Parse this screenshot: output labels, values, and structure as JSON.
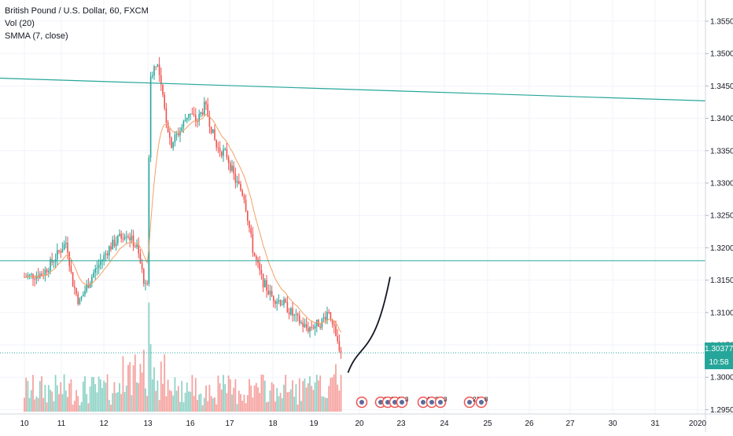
{
  "header": {
    "title": "British Pound / U.S. Dollar, 60, FXCM",
    "indicator_volume": "Vol (20)",
    "indicator_ma": "SMMA (7, close)"
  },
  "price_axis": {
    "labels": [
      "1.35500",
      "1.35000",
      "1.34500",
      "1.34000",
      "1.33500",
      "1.33000",
      "1.32500",
      "1.32000",
      "1.31500",
      "1.31000",
      "1.30500",
      "1.30000",
      "1.29500"
    ],
    "current_price": "1.30377",
    "countdown": "10:58"
  },
  "time_axis": {
    "labels": [
      "10",
      "11",
      "12",
      "13",
      "16",
      "17",
      "18",
      "19",
      "20",
      "23",
      "24",
      "25",
      "26",
      "27",
      "30",
      "31",
      "2020"
    ]
  },
  "event_markers": [
    {
      "icon": "flag-icon",
      "label": ""
    },
    {
      "icon": "flag-icon",
      "label": "8"
    },
    {
      "icon": "flag-icon",
      "label": "7"
    },
    {
      "icon": "flag-icon",
      "label": "2"
    },
    {
      "icon": "flag-icon",
      "label": "3"
    },
    {
      "icon": "flag-icon",
      "label": "4"
    },
    {
      "icon": "flag-icon",
      "label": "2"
    },
    {
      "icon": "flag-icon",
      "label": "3"
    },
    {
      "icon": "flag-icon",
      "label": "23"
    },
    {
      "icon": "flag-icon",
      "label": "8"
    }
  ],
  "colors": {
    "up": "#26a69a",
    "down": "#ef5350",
    "volume_up": "#8fd3c7",
    "volume_down": "#f5a3a0",
    "ma": "#f5a064",
    "trendline": "#26a69a",
    "current_price_line": "#26a69a",
    "projection": "#131722"
  },
  "chart_data": {
    "type": "candlestick",
    "title": "British Pound / U.S. Dollar, 60, FXCM",
    "symbol": "GBPUSD",
    "timeframe": "60",
    "ylim": [
      1.2935,
      1.3575
    ],
    "grid": true,
    "series": [
      {
        "name": "British Pound / U.S. Dollar",
        "kind": "ohlc",
        "anchors": [
          [
            "10 00:00",
            1.3155
          ],
          [
            "10 12:00",
            1.316
          ],
          [
            "10 20:00",
            1.3185
          ],
          [
            "11 03:00",
            1.321
          ],
          [
            "11 06:00",
            1.315
          ],
          [
            "11 10:00",
            1.3115
          ],
          [
            "11 18:00",
            1.316
          ],
          [
            "12 03:00",
            1.32
          ],
          [
            "12 12:00",
            1.3225
          ],
          [
            "12 18:00",
            1.32
          ],
          [
            "12 23:00",
            1.3135
          ],
          [
            "13 00:00",
            1.314
          ],
          [
            "13 01:00",
            1.346
          ],
          [
            "13 05:00",
            1.349
          ],
          [
            "13 09:00",
            1.342
          ],
          [
            "13 13:00",
            1.336
          ],
          [
            "13 19:00",
            1.3385
          ],
          [
            "13 23:00",
            1.341
          ],
          [
            "16 04:00",
            1.3395
          ],
          [
            "16 09:00",
            1.342
          ],
          [
            "16 16:00",
            1.3355
          ],
          [
            "16 22:00",
            1.3345
          ],
          [
            "17 03:00",
            1.3305
          ],
          [
            "17 08:00",
            1.328
          ],
          [
            "17 13:00",
            1.3195
          ],
          [
            "17 18:00",
            1.315
          ],
          [
            "17 23:00",
            1.3125
          ],
          [
            "18 06:00",
            1.3115
          ],
          [
            "18 12:00",
            1.3095
          ],
          [
            "18 20:00",
            1.3075
          ],
          [
            "19 04:00",
            1.3085
          ],
          [
            "19 08:00",
            1.3105
          ],
          [
            "19 12:00",
            1.3055
          ],
          [
            "19 15:00",
            1.3038
          ]
        ]
      },
      {
        "name": "SMMA (7, close)",
        "kind": "line"
      },
      {
        "name": "Vol (20)",
        "kind": "volume"
      }
    ],
    "horizontal_lines": [
      1.318,
      1.30377
    ],
    "trend_line": {
      "from": [
        "10 00:00",
        1.3462
      ],
      "to": [
        "2020",
        1.3427
      ]
    },
    "projection_curve": {
      "from": [
        "19 18:00",
        1.3007
      ],
      "to": [
        "23 00:00",
        1.3155
      ]
    },
    "volume_bars": [
      {
        "label": "Vol (20)",
        "peak": "13 00:00"
      }
    ]
  }
}
